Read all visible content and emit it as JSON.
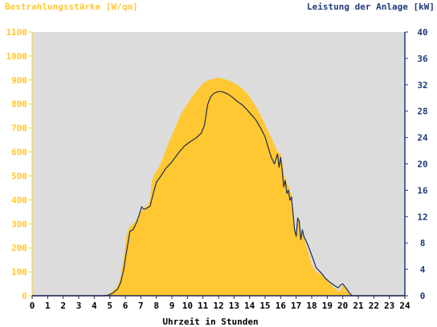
{
  "chart_data": {
    "type": "area",
    "left_axis_label": "Bestrahlungsstärke [W/qm]",
    "right_axis_label": "Leistung der Anlage [kW]",
    "xlabel": "Uhrzeit in Stunden",
    "xlim": [
      0,
      24
    ],
    "x_ticks": [
      0,
      1,
      2,
      3,
      4,
      5,
      6,
      7,
      8,
      9,
      10,
      11,
      12,
      13,
      14,
      15,
      16,
      17,
      18,
      19,
      20,
      21,
      22,
      23,
      24
    ],
    "left_ylim": [
      0,
      1100
    ],
    "left_ticks": [
      0,
      100,
      200,
      300,
      400,
      500,
      600,
      700,
      800,
      900,
      1000,
      1100
    ],
    "right_ylim": [
      0,
      40
    ],
    "right_ticks": [
      0,
      4,
      8,
      12,
      16,
      20,
      24,
      28,
      32,
      36,
      40
    ],
    "colors": {
      "irradiance_fill": "#ffc832",
      "power_line": "#1f2a55",
      "plot_background": "#dcdcdc",
      "left_axis_text": "#ffc832",
      "right_axis_text": "#1f3a7a",
      "x_axis_text": "#000000"
    },
    "series": [
      {
        "name": "Bestrahlungsstärke [W/qm]",
        "axis": "left",
        "x": [
          0,
          4.5,
          4.9,
          5.2,
          5.5,
          5.7,
          5.9,
          6.1,
          6.3,
          6.5,
          6.8,
          7.0,
          7.2,
          7.4,
          7.6,
          7.7,
          7.9,
          8.2,
          8.5,
          8.8,
          9.2,
          9.6,
          10.0,
          10.4,
          10.8,
          11.1,
          11.4,
          11.7,
          12.0,
          12.3,
          12.6,
          12.9,
          13.2,
          13.4,
          13.6,
          13.9,
          14.2,
          14.5,
          14.8,
          15.1,
          15.4,
          15.6,
          15.8,
          16.0,
          16.1,
          16.3,
          16.5,
          16.7,
          16.8,
          16.95,
          17.1,
          17.2,
          17.3,
          17.45,
          17.6,
          17.8,
          18.0,
          18.3,
          18.6,
          18.9,
          19.2,
          19.5,
          19.8,
          20.0,
          20.2,
          20.4,
          20.6,
          24
        ],
        "values": [
          0,
          0,
          5,
          20,
          40,
          80,
          160,
          260,
          290,
          300,
          320,
          350,
          365,
          375,
          400,
          480,
          510,
          540,
          590,
          640,
          700,
          760,
          800,
          840,
          870,
          890,
          900,
          905,
          910,
          905,
          900,
          890,
          880,
          870,
          860,
          840,
          810,
          780,
          740,
          700,
          660,
          630,
          600,
          590,
          560,
          480,
          460,
          420,
          320,
          240,
          320,
          300,
          230,
          260,
          220,
          180,
          130,
          100,
          90,
          70,
          50,
          30,
          15,
          45,
          25,
          10,
          0,
          0
        ]
      },
      {
        "name": "Leistung der Anlage [kW]",
        "axis": "right",
        "x": [
          0,
          4.6,
          4.9,
          5.2,
          5.5,
          5.7,
          5.9,
          6.1,
          6.3,
          6.5,
          6.7,
          6.9,
          7.05,
          7.2,
          7.4,
          7.6,
          7.8,
          8.0,
          8.3,
          8.6,
          9.0,
          9.4,
          9.8,
          10.2,
          10.6,
          10.9,
          11.1,
          11.3,
          11.5,
          11.7,
          11.9,
          12.1,
          12.3,
          12.6,
          12.9,
          13.2,
          13.5,
          13.8,
          14.1,
          14.4,
          14.7,
          15.0,
          15.2,
          15.4,
          15.6,
          15.8,
          15.9,
          16.0,
          16.1,
          16.2,
          16.3,
          16.4,
          16.5,
          16.6,
          16.7,
          16.8,
          16.9,
          17.0,
          17.1,
          17.2,
          17.3,
          17.4,
          17.5,
          17.6,
          17.7,
          17.9,
          18.1,
          18.3,
          18.6,
          18.9,
          19.2,
          19.5,
          19.7,
          19.9,
          20.0,
          20.2,
          20.4,
          20.6,
          24
        ],
        "values": [
          0,
          0,
          0.1,
          0.4,
          1.0,
          2.0,
          4.0,
          7.0,
          9.8,
          10.0,
          11.0,
          12.3,
          13.5,
          13.1,
          13.3,
          13.6,
          15.5,
          17.2,
          18.2,
          19.3,
          20.3,
          21.6,
          22.7,
          23.4,
          24.0,
          24.7,
          25.9,
          29.0,
          30.2,
          30.7,
          30.9,
          31.0,
          30.9,
          30.6,
          30.1,
          29.5,
          29.0,
          28.3,
          27.5,
          26.7,
          25.5,
          24.1,
          22.5,
          21.0,
          20.0,
          21.5,
          19.5,
          21.0,
          19.0,
          16.5,
          17.5,
          15.5,
          16.0,
          14.5,
          15.0,
          12.5,
          10.0,
          9.0,
          11.8,
          11.3,
          8.5,
          10.0,
          9.0,
          8.5,
          8.0,
          6.8,
          5.5,
          4.2,
          3.5,
          2.6,
          2.0,
          1.5,
          1.2,
          1.7,
          1.8,
          1.2,
          0.5,
          0.0,
          0
        ]
      }
    ]
  }
}
